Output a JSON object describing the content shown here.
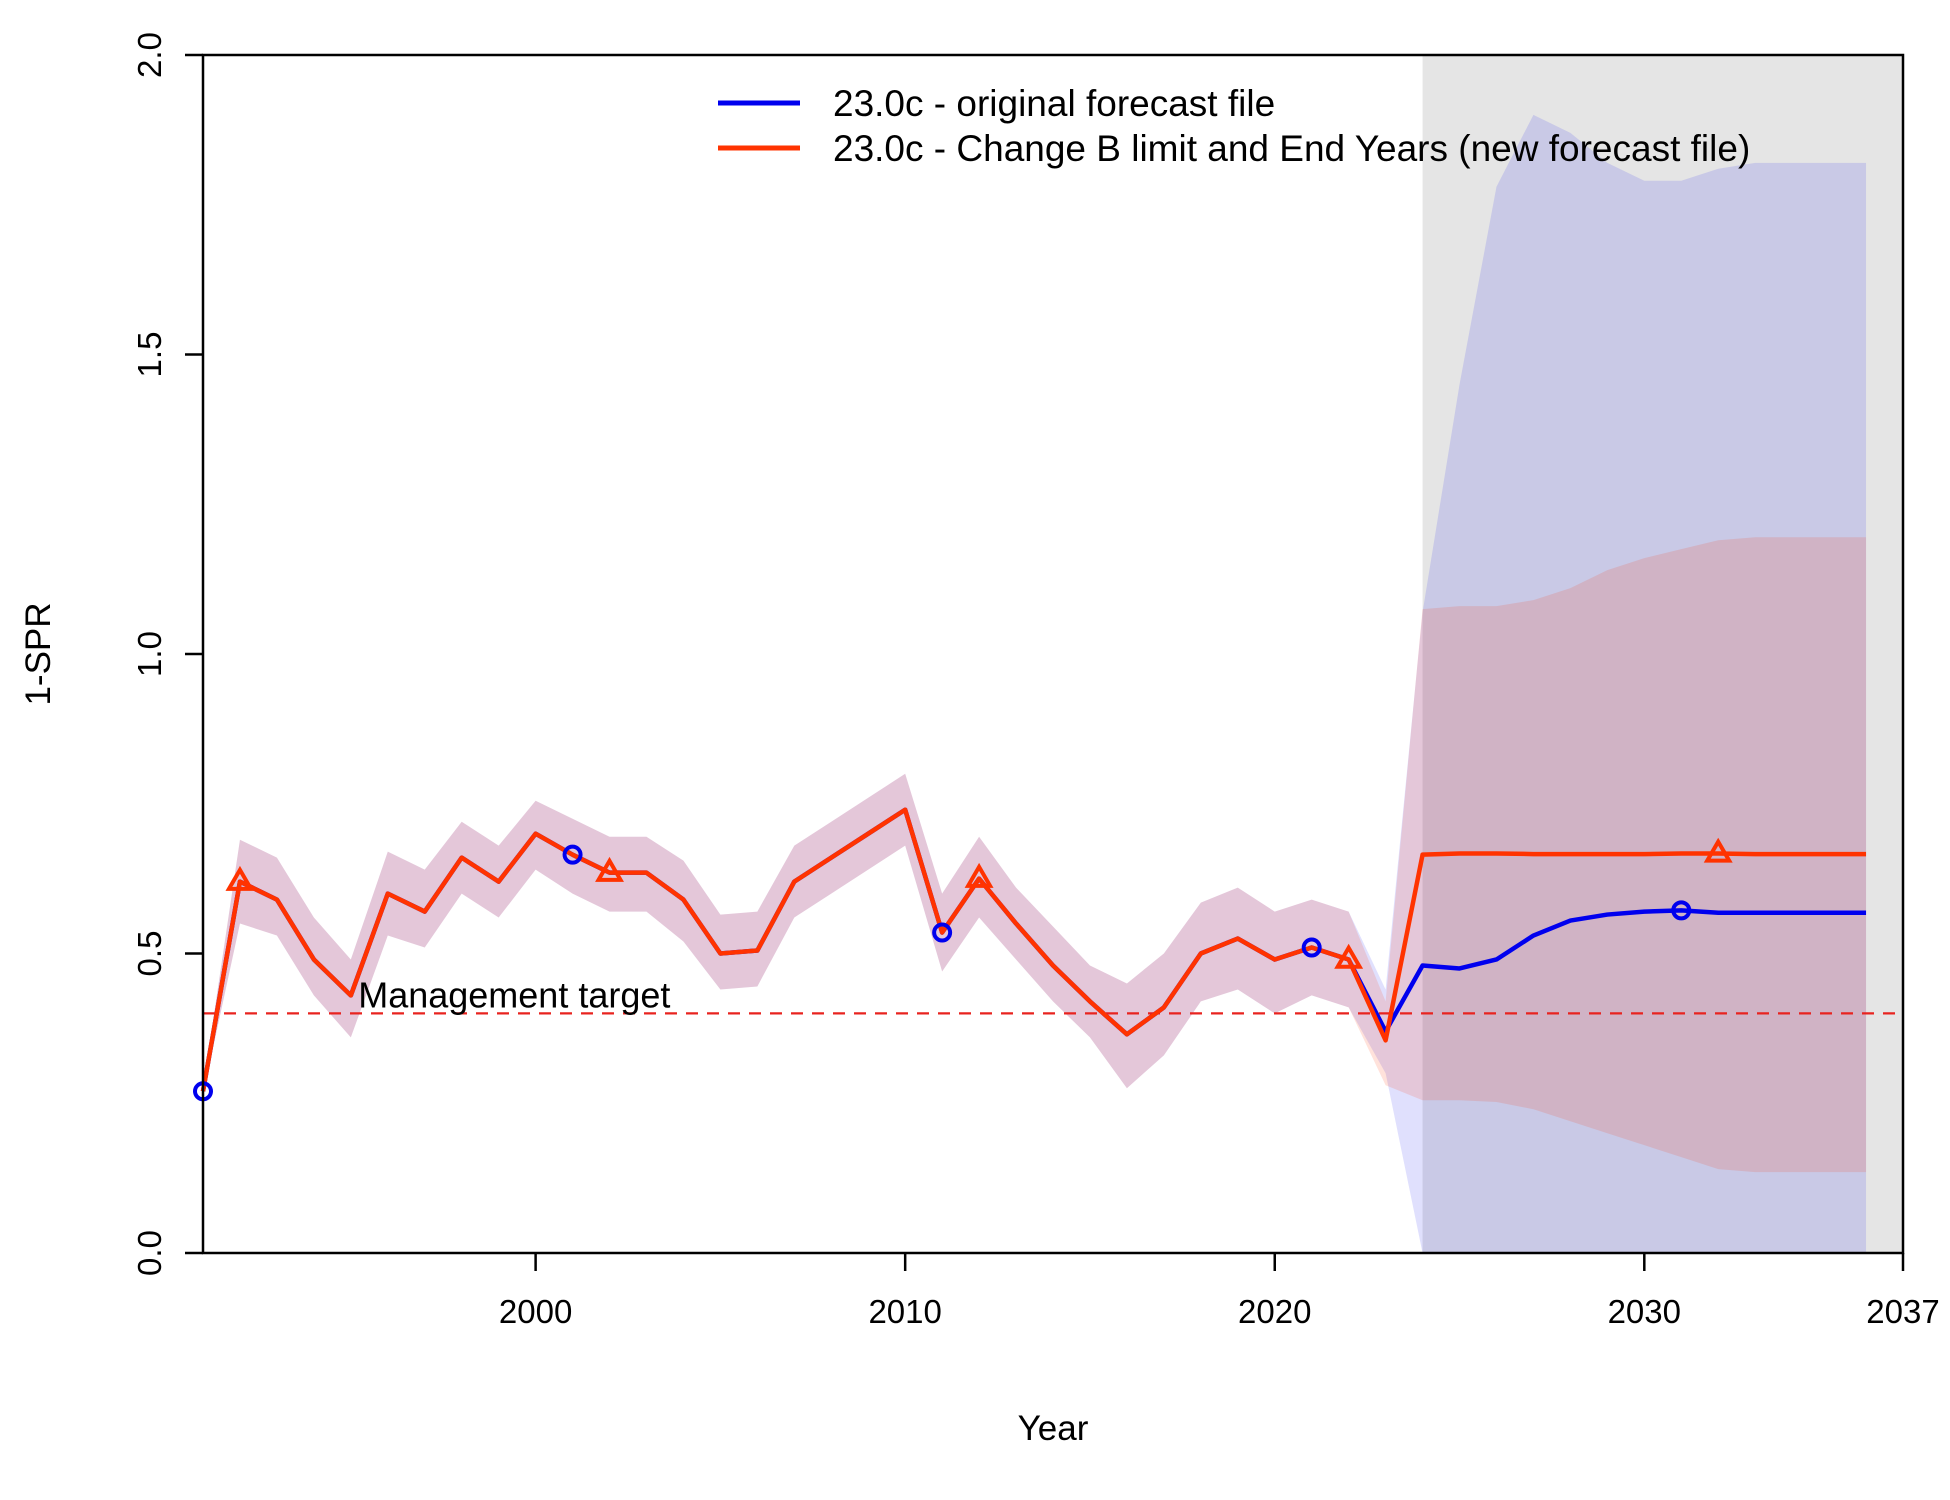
{
  "chart_data": {
    "type": "line",
    "title": "",
    "xlabel": "Year",
    "ylabel": "1-SPR",
    "xlim": [
      1991,
      2037
    ],
    "ylim": [
      0,
      2
    ],
    "x_ticks": [
      "2000",
      "2010",
      "2020",
      "2030",
      "2037"
    ],
    "x_tick_values": [
      2000,
      2010,
      2020,
      2030,
      2037
    ],
    "y_ticks": [
      "0.0",
      "0.5",
      "1.0",
      "1.5",
      "2.0"
    ],
    "y_tick_values": [
      0,
      0.5,
      1.0,
      1.5,
      2.0
    ],
    "forecast_shading_start": 2024,
    "forecast_shading_color": "#e5e5e5",
    "grid": false,
    "legend_position": "top-center",
    "reference_line": {
      "label": "Management target",
      "value": 0.4,
      "color": "#e8231f"
    },
    "x": [
      1991,
      1992,
      1993,
      1994,
      1995,
      1996,
      1997,
      1998,
      1999,
      2000,
      2001,
      2002,
      2003,
      2004,
      2005,
      2006,
      2007,
      2008,
      2009,
      2010,
      2011,
      2012,
      2013,
      2014,
      2015,
      2016,
      2017,
      2018,
      2019,
      2020,
      2021,
      2022,
      2023,
      2024,
      2025,
      2026,
      2027,
      2028,
      2029,
      2030,
      2031,
      2032,
      2033,
      2034,
      2035,
      2036
    ],
    "series": [
      {
        "name": "23.0c - original forecast file",
        "color": "#0000ee",
        "marker": "circle",
        "marker_years": [
          1991,
          2001,
          2011,
          2021,
          2031
        ],
        "values": [
          0.27,
          0.62,
          0.59,
          0.49,
          0.43,
          0.6,
          0.57,
          0.66,
          0.62,
          0.7,
          0.665,
          0.635,
          0.635,
          0.59,
          0.5,
          0.505,
          0.62,
          0.66,
          0.7,
          0.74,
          0.535,
          0.625,
          0.55,
          0.48,
          0.42,
          0.365,
          0.41,
          0.5,
          0.525,
          0.49,
          0.51,
          0.49,
          0.37,
          0.48,
          0.475,
          0.49,
          0.53,
          0.555,
          0.565,
          0.57,
          0.572,
          0.568,
          0.568,
          0.568,
          0.568,
          0.568
        ],
        "lower": [
          0.265,
          0.55,
          0.53,
          0.43,
          0.36,
          0.53,
          0.51,
          0.6,
          0.56,
          0.64,
          0.6,
          0.57,
          0.57,
          0.52,
          0.44,
          0.445,
          0.56,
          0.6,
          0.64,
          0.68,
          0.47,
          0.56,
          0.49,
          0.42,
          0.36,
          0.275,
          0.33,
          0.42,
          0.44,
          0.4,
          0.43,
          0.41,
          0.3,
          0.0,
          0.0,
          0.0,
          0.0,
          0.0,
          0.0,
          0.0,
          0.0,
          0.0,
          0.0,
          0.0,
          0.0,
          0.0
        ],
        "upper": [
          0.275,
          0.69,
          0.66,
          0.56,
          0.49,
          0.67,
          0.64,
          0.72,
          0.68,
          0.755,
          0.725,
          0.695,
          0.695,
          0.655,
          0.565,
          0.57,
          0.68,
          0.72,
          0.76,
          0.8,
          0.6,
          0.695,
          0.61,
          0.545,
          0.48,
          0.45,
          0.5,
          0.585,
          0.61,
          0.57,
          0.59,
          0.57,
          0.44,
          1.07,
          1.45,
          1.78,
          1.9,
          1.87,
          1.82,
          1.79,
          1.79,
          1.81,
          1.82,
          1.82,
          1.82,
          1.82
        ]
      },
      {
        "name": "23.0c - Change B limit and End Years (new forecast file)",
        "color": "#ff3300",
        "marker": "triangle",
        "marker_years": [
          1992,
          2002,
          2012,
          2022,
          2032
        ],
        "values": [
          0.27,
          0.62,
          0.59,
          0.49,
          0.43,
          0.6,
          0.57,
          0.66,
          0.62,
          0.7,
          0.665,
          0.635,
          0.635,
          0.59,
          0.5,
          0.505,
          0.62,
          0.66,
          0.7,
          0.74,
          0.535,
          0.625,
          0.55,
          0.48,
          0.42,
          0.365,
          0.41,
          0.5,
          0.525,
          0.49,
          0.51,
          0.49,
          0.355,
          0.665,
          0.667,
          0.667,
          0.666,
          0.666,
          0.666,
          0.666,
          0.667,
          0.667,
          0.666,
          0.666,
          0.666,
          0.666
        ],
        "lower": [
          0.265,
          0.55,
          0.53,
          0.43,
          0.36,
          0.53,
          0.51,
          0.6,
          0.56,
          0.64,
          0.6,
          0.57,
          0.57,
          0.52,
          0.44,
          0.445,
          0.56,
          0.6,
          0.64,
          0.68,
          0.47,
          0.56,
          0.49,
          0.42,
          0.36,
          0.275,
          0.33,
          0.42,
          0.44,
          0.4,
          0.43,
          0.41,
          0.28,
          0.255,
          0.255,
          0.252,
          0.24,
          0.22,
          0.2,
          0.18,
          0.16,
          0.14,
          0.135,
          0.135,
          0.135,
          0.135
        ],
        "upper": [
          0.275,
          0.69,
          0.66,
          0.56,
          0.49,
          0.67,
          0.64,
          0.72,
          0.68,
          0.755,
          0.725,
          0.695,
          0.695,
          0.655,
          0.565,
          0.57,
          0.68,
          0.72,
          0.76,
          0.8,
          0.6,
          0.695,
          0.61,
          0.545,
          0.48,
          0.45,
          0.5,
          0.585,
          0.61,
          0.57,
          0.59,
          0.57,
          0.42,
          1.075,
          1.08,
          1.08,
          1.09,
          1.11,
          1.14,
          1.16,
          1.175,
          1.19,
          1.195,
          1.195,
          1.195,
          1.195
        ]
      }
    ]
  }
}
